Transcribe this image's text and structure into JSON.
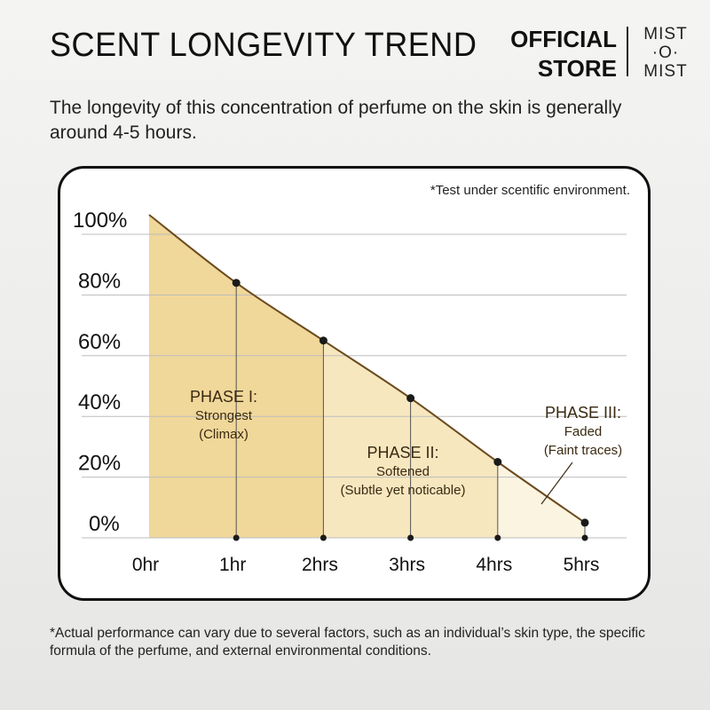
{
  "header": {
    "title": "SCENT LONGEVITY TREND",
    "brand_line1": "OFFICIAL",
    "brand_line2": "STORE",
    "logo_line1": "MIST",
    "logo_line2": "·O·",
    "logo_line3": "MIST"
  },
  "subtitle": "The longevity of this concentration of perfume on the skin is generally around 4-5 hours.",
  "chart_note": "*Test under scentific environment.",
  "footer_note": "*Actual performance can vary due to several factors, such as an individual’s skin type, the specific formula of the perfume, and external environmental conditions.",
  "colors": {
    "curve": "#6b4a1e",
    "phase1_fill": "#f0d79a",
    "phase2_fill": "#f6e7bf",
    "phase3_fill": "#fbf4e0",
    "grid": "#bdbdbd",
    "point": "#1a1a1a"
  },
  "chart_data": {
    "type": "area",
    "title": "SCENT LONGEVITY TREND",
    "x_labels": [
      "0hr",
      "1hr",
      "2hrs",
      "3hrs",
      "4hrs",
      "5hrs"
    ],
    "x": [
      0,
      1,
      2,
      3,
      4,
      5
    ],
    "y_labels": [
      "100%",
      "80%",
      "60%",
      "40%",
      "20%",
      "0%"
    ],
    "ylim": [
      0,
      100
    ],
    "series": [
      {
        "values": [
          100,
          84,
          65,
          46,
          25,
          5
        ]
      }
    ],
    "phases": [
      {
        "title": "PHASE I:",
        "line1": "Strongest",
        "line2": "(Climax)",
        "x_range": [
          0,
          2
        ]
      },
      {
        "title": "PHASE II:",
        "line1": "Softened",
        "line2": "(Subtle yet noticable)",
        "x_range": [
          2,
          4
        ]
      },
      {
        "title": "PHASE III:",
        "line1": "Faded",
        "line2": "(Faint traces)",
        "x_range": [
          4,
          5
        ]
      }
    ],
    "grid": true
  }
}
